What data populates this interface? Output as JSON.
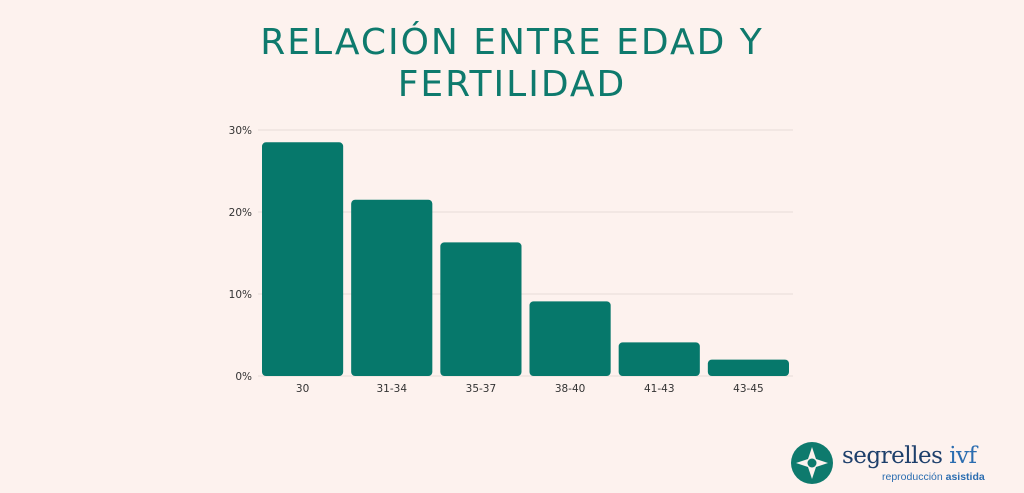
{
  "title_lines": [
    "RELACIÓN ENTRE EDAD Y",
    "FERTILIDAD"
  ],
  "colors": {
    "background": "#fdf2ee",
    "bar": "#06786b",
    "title": "#0e7a6d",
    "grid": "#e6dcd8"
  },
  "chart_data": {
    "type": "bar",
    "title": "RELACIÓN ENTRE EDAD Y FERTILIDAD",
    "categories": [
      "30",
      "31-34",
      "35-37",
      "38-40",
      "41-43",
      "43-45"
    ],
    "values": [
      28.5,
      21.5,
      16.3,
      9.1,
      4.1,
      2.0
    ],
    "y_ticks": [
      "0%",
      "10%",
      "20%",
      "30%"
    ],
    "ylim": [
      0,
      30
    ],
    "xlabel": "",
    "ylabel": "",
    "grid": true
  },
  "logo": {
    "name": "segrelles",
    "name_suffix": "ivf",
    "tagline_light": "reproducción",
    "tagline_bold": "asistida",
    "icon": "star-emblem-icon"
  }
}
